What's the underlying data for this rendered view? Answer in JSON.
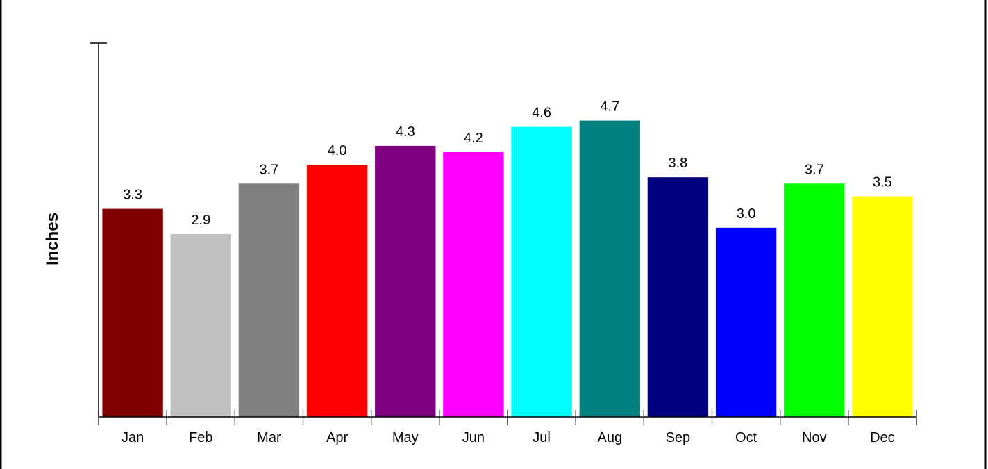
{
  "chart_data": {
    "type": "bar",
    "title": "",
    "xlabel": "",
    "ylabel": "Inches",
    "categories": [
      "Jan",
      "Feb",
      "Mar",
      "Apr",
      "May",
      "Jun",
      "Jul",
      "Aug",
      "Sep",
      "Oct",
      "Nov",
      "Dec"
    ],
    "values": [
      3.3,
      2.9,
      3.7,
      4.0,
      4.3,
      4.2,
      4.6,
      4.7,
      3.8,
      3.0,
      3.7,
      3.5
    ],
    "data_labels": [
      "3.3",
      "2.9",
      "3.7",
      "4.0",
      "4.3",
      "4.2",
      "4.6",
      "4.7",
      "3.8",
      "3.0",
      "3.7",
      "3.5"
    ],
    "colors": [
      "#800000",
      "#c0c0c0",
      "#808080",
      "#ff0000",
      "#800080",
      "#ff00ff",
      "#00ffff",
      "#008080",
      "#000080",
      "#0000ff",
      "#00ff00",
      "#ffff00"
    ],
    "ylim": [
      0,
      5.93
    ],
    "grid": false,
    "legend": "none"
  }
}
